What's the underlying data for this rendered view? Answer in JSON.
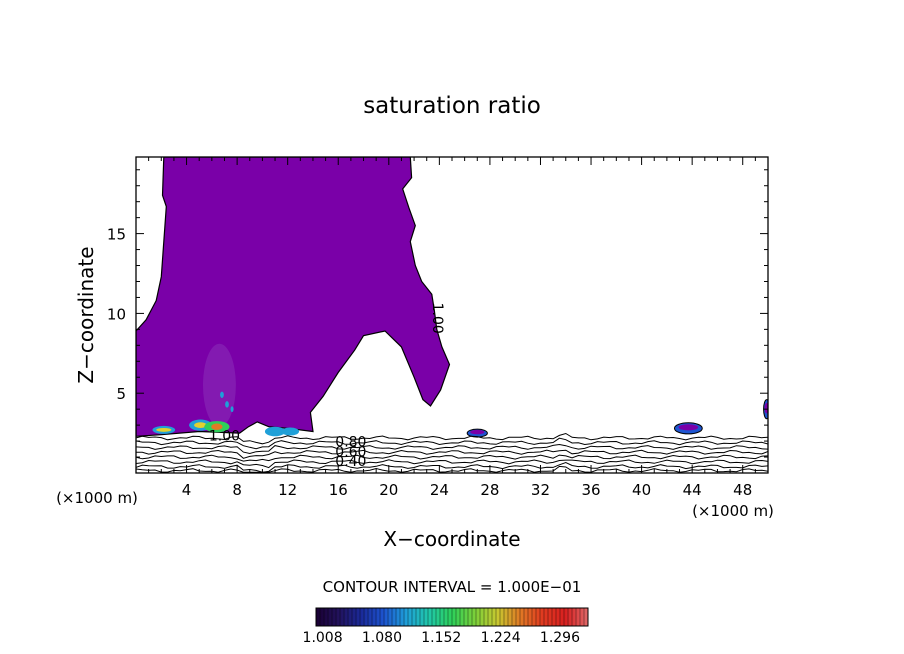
{
  "chart_data": {
    "type": "heatmap",
    "title": "saturation ratio",
    "xlabel": "X−coordinate",
    "ylabel": "Z−coordinate",
    "x_unit_left": "(×1000 m)",
    "x_unit_right": "(×1000 m)",
    "xlim": [
      0,
      50
    ],
    "ylim": [
      0,
      19.8
    ],
    "x_ticks": [
      4,
      8,
      12,
      16,
      20,
      24,
      28,
      32,
      36,
      40,
      44,
      48
    ],
    "x_tick_labels": [
      "4",
      "8",
      "12",
      "16",
      "20",
      "24",
      "28",
      "32",
      "36",
      "40",
      "44",
      "48"
    ],
    "y_ticks": [
      5,
      10,
      15
    ],
    "y_tick_labels": [
      "5",
      "10",
      "15"
    ],
    "contour_interval_text": "CONTOUR INTERVAL = 1.000E−01",
    "contour_labels": [
      {
        "text": "1.00",
        "x": 23.8,
        "y": 9.7,
        "rotate": 90
      },
      {
        "text": "1.00",
        "x": 7.0,
        "y": 2.3,
        "rotate": 0
      },
      {
        "text": "0.80",
        "x": 17.0,
        "y": 1.9,
        "rotate": 0
      },
      {
        "text": "0.60",
        "x": 17.0,
        "y": 1.3,
        "rotate": 0
      },
      {
        "text": "0.40",
        "x": 17.0,
        "y": 0.7,
        "rotate": 0
      }
    ],
    "colorbar": {
      "ticks": [
        1.008,
        1.08,
        1.152,
        1.224,
        1.296
      ],
      "tick_labels": [
        "1.008",
        "1.080",
        "1.152",
        "1.224",
        "1.296"
      ],
      "range": [
        1.0,
        1.33
      ],
      "colors": [
        "#1a0033",
        "#22125c",
        "#1a2a9a",
        "#1d55d0",
        "#1fa0d8",
        "#20c8a8",
        "#2ed05a",
        "#7ad03a",
        "#c8c830",
        "#e07a25",
        "#e03a20",
        "#d82020",
        "#e06a6a"
      ]
    },
    "supersaturated_region_color": "#7a00a8",
    "supersaturated_boundary": [
      [
        0.0,
        2.3
      ],
      [
        0.0,
        8.9
      ],
      [
        0.8,
        9.6
      ],
      [
        1.6,
        10.8
      ],
      [
        2.0,
        12.3
      ],
      [
        2.4,
        16.7
      ],
      [
        2.1,
        17.4
      ],
      [
        2.2,
        19.8
      ],
      [
        21.7,
        19.8
      ],
      [
        21.8,
        18.5
      ],
      [
        21.1,
        17.8
      ],
      [
        21.6,
        16.6
      ],
      [
        22.1,
        15.5
      ],
      [
        21.7,
        14.5
      ],
      [
        22.1,
        13.0
      ],
      [
        22.6,
        12.0
      ],
      [
        23.4,
        11.2
      ],
      [
        23.6,
        10.2
      ],
      [
        23.8,
        9.0
      ],
      [
        24.2,
        7.9
      ],
      [
        24.8,
        6.8
      ],
      [
        24.1,
        5.2
      ],
      [
        23.3,
        4.2
      ],
      [
        22.7,
        4.6
      ],
      [
        22.0,
        6.0
      ],
      [
        21.0,
        7.9
      ],
      [
        19.7,
        8.9
      ],
      [
        18.0,
        8.6
      ],
      [
        17.3,
        7.7
      ],
      [
        16.0,
        6.3
      ],
      [
        14.8,
        4.8
      ],
      [
        13.8,
        3.8
      ],
      [
        14.0,
        2.6
      ],
      [
        12.0,
        2.8
      ],
      [
        10.5,
        2.9
      ],
      [
        9.6,
        3.2
      ],
      [
        8.9,
        2.9
      ],
      [
        8.2,
        2.5
      ],
      [
        5.0,
        2.6
      ],
      [
        2.0,
        2.4
      ],
      [
        0.0,
        2.3
      ]
    ],
    "small_cells": [
      {
        "x": 27.0,
        "y": 2.5,
        "rx": 0.8,
        "ry": 0.25
      },
      {
        "x": 43.7,
        "y": 2.8,
        "rx": 1.1,
        "ry": 0.35
      },
      {
        "x": 49.9,
        "y": 4.0,
        "rx": 0.25,
        "ry": 0.6
      }
    ],
    "hot_cells": [
      {
        "x": 2.2,
        "y": 2.7,
        "rx": 0.9,
        "ry": 0.25,
        "color": "#1fa0d8"
      },
      {
        "x": 2.2,
        "y": 2.7,
        "rx": 0.6,
        "ry": 0.12,
        "color": "#e0d030"
      },
      {
        "x": 5.1,
        "y": 3.0,
        "rx": 0.9,
        "ry": 0.35,
        "color": "#1fa0d8"
      },
      {
        "x": 5.1,
        "y": 3.0,
        "rx": 0.5,
        "ry": 0.18,
        "color": "#e0d030"
      },
      {
        "x": 6.4,
        "y": 2.9,
        "rx": 1.0,
        "ry": 0.35,
        "color": "#2ed05a"
      },
      {
        "x": 6.4,
        "y": 2.9,
        "rx": 0.45,
        "ry": 0.2,
        "color": "#e07a25"
      },
      {
        "x": 11.0,
        "y": 2.6,
        "rx": 0.8,
        "ry": 0.3,
        "color": "#1fa0d8"
      },
      {
        "x": 12.2,
        "y": 2.6,
        "rx": 0.7,
        "ry": 0.25,
        "color": "#1fa0d8"
      },
      {
        "x": 6.8,
        "y": 4.9,
        "rx": 0.15,
        "ry": 0.2,
        "color": "#1fa0d8"
      },
      {
        "x": 7.2,
        "y": 4.3,
        "rx": 0.15,
        "ry": 0.2,
        "color": "#1fa0d8"
      },
      {
        "x": 7.6,
        "y": 4.0,
        "rx": 0.12,
        "ry": 0.18,
        "color": "#1fa0d8"
      }
    ],
    "faint_column": {
      "x": 6.6,
      "y": 5.5,
      "rx": 1.3,
      "ry": 2.6,
      "color": "#8a30b8"
    },
    "subsaturated_contours": [
      {
        "level": 0.9,
        "y": 2.2
      },
      {
        "level": 0.8,
        "y": 1.9
      },
      {
        "level": 0.7,
        "y": 1.6
      },
      {
        "level": 0.6,
        "y": 1.3
      },
      {
        "level": 0.5,
        "y": 1.0
      },
      {
        "level": 0.4,
        "y": 0.7
      },
      {
        "level": 0.3,
        "y": 0.4
      },
      {
        "level": 0.2,
        "y": 0.15
      }
    ]
  }
}
